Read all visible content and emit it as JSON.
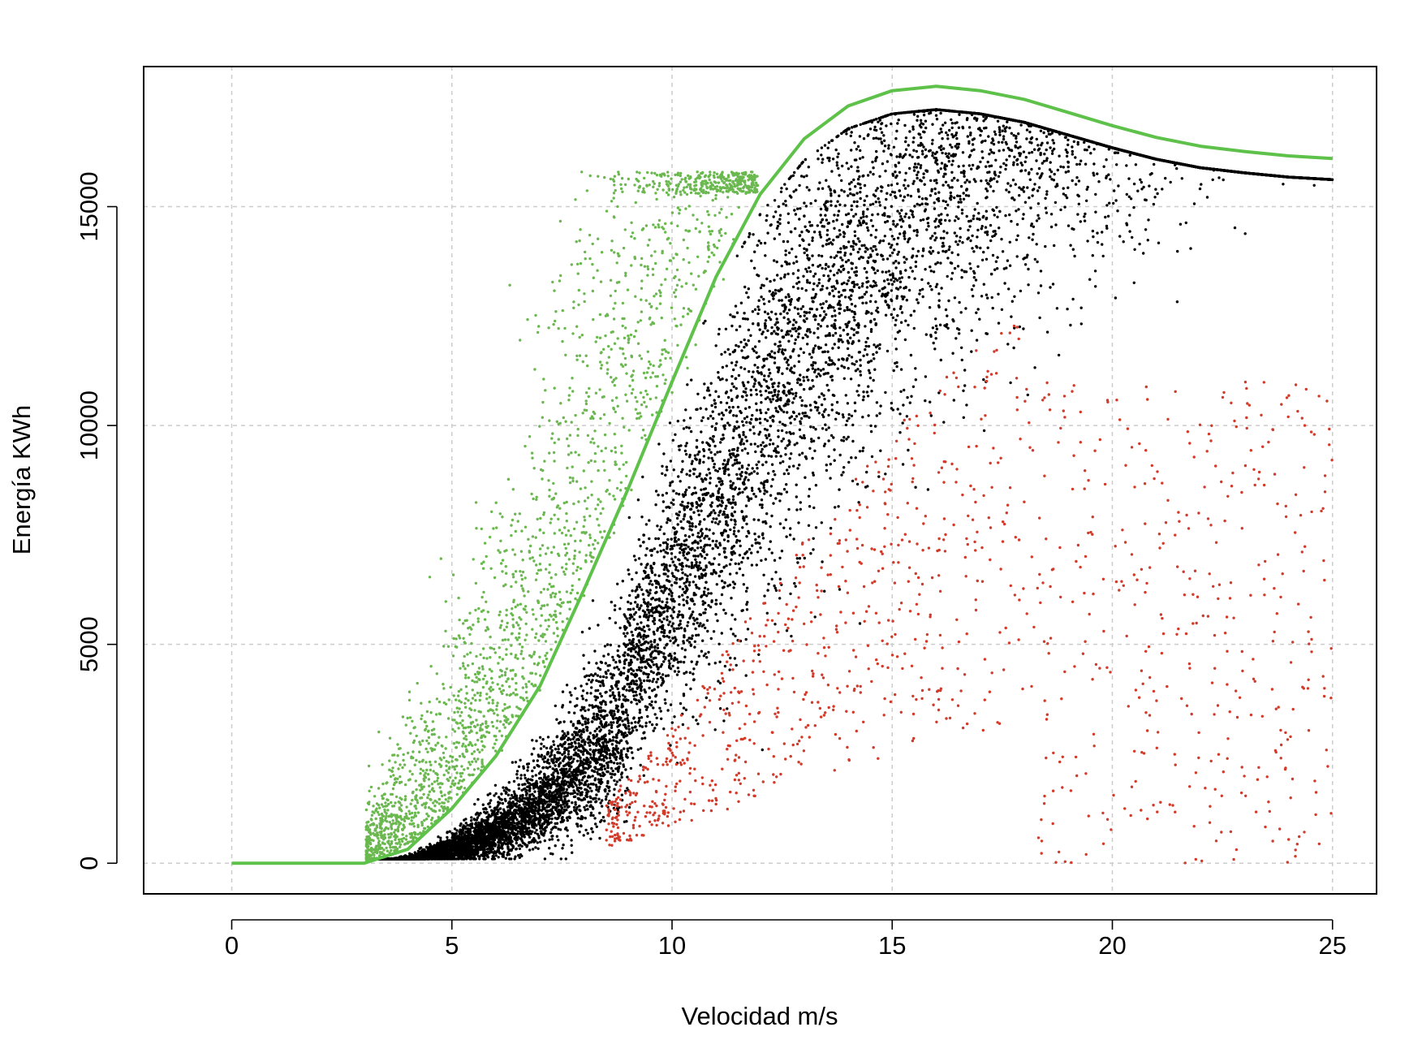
{
  "chart_data": {
    "type": "scatter",
    "title": "",
    "xlabel": "Velocidad m/s",
    "ylabel": "Energía KWh",
    "xlim": [
      -2,
      26
    ],
    "ylim": [
      -700,
      18200
    ],
    "xticks": [
      0,
      5,
      10,
      15,
      20,
      25
    ],
    "yticks": [
      0,
      5000,
      10000,
      15000
    ],
    "x_tick_labels": [
      "0",
      "5",
      "10",
      "15",
      "20",
      "25"
    ],
    "y_tick_labels": [
      "0",
      "5000",
      "10000",
      "15000"
    ],
    "grid": true,
    "legend": "none",
    "colors": {
      "curve": "#5ec14a",
      "above_curve_points": "#6ab84f",
      "normal_points": "#000000",
      "low_outlier_points": "#d23a2a"
    },
    "curve": {
      "name": "",
      "x": [
        0,
        1,
        2,
        3,
        4,
        5,
        6,
        7,
        8,
        9,
        10,
        11,
        12,
        13,
        14,
        15,
        16,
        17,
        18,
        19,
        20,
        21,
        22,
        23,
        24,
        25
      ],
      "y": [
        0,
        0,
        0,
        0,
        320,
        1250,
        2450,
        4050,
        6250,
        8550,
        11000,
        13400,
        15280,
        16550,
        17300,
        17650,
        17750,
        17650,
        17450,
        17150,
        16850,
        16580,
        16380,
        16260,
        16160,
        16100
      ]
    },
    "point_groups": [
      {
        "group": "above_curve",
        "approx_count": 2200,
        "x_range": [
          3,
          12
        ],
        "y_range": [
          0,
          15800
        ],
        "description_of_spread": "above the green curve"
      },
      {
        "group": "normal",
        "approx_count": 28000,
        "x_range": [
          3.2,
          25
        ],
        "y_range": [
          0,
          16200
        ],
        "description_of_spread": "below the curve, dense band"
      },
      {
        "group": "low_outlier",
        "approx_count": 1100,
        "x_range": [
          8.5,
          25
        ],
        "y_range": [
          0,
          11300
        ],
        "description_of_spread": "below the dense band"
      }
    ]
  }
}
